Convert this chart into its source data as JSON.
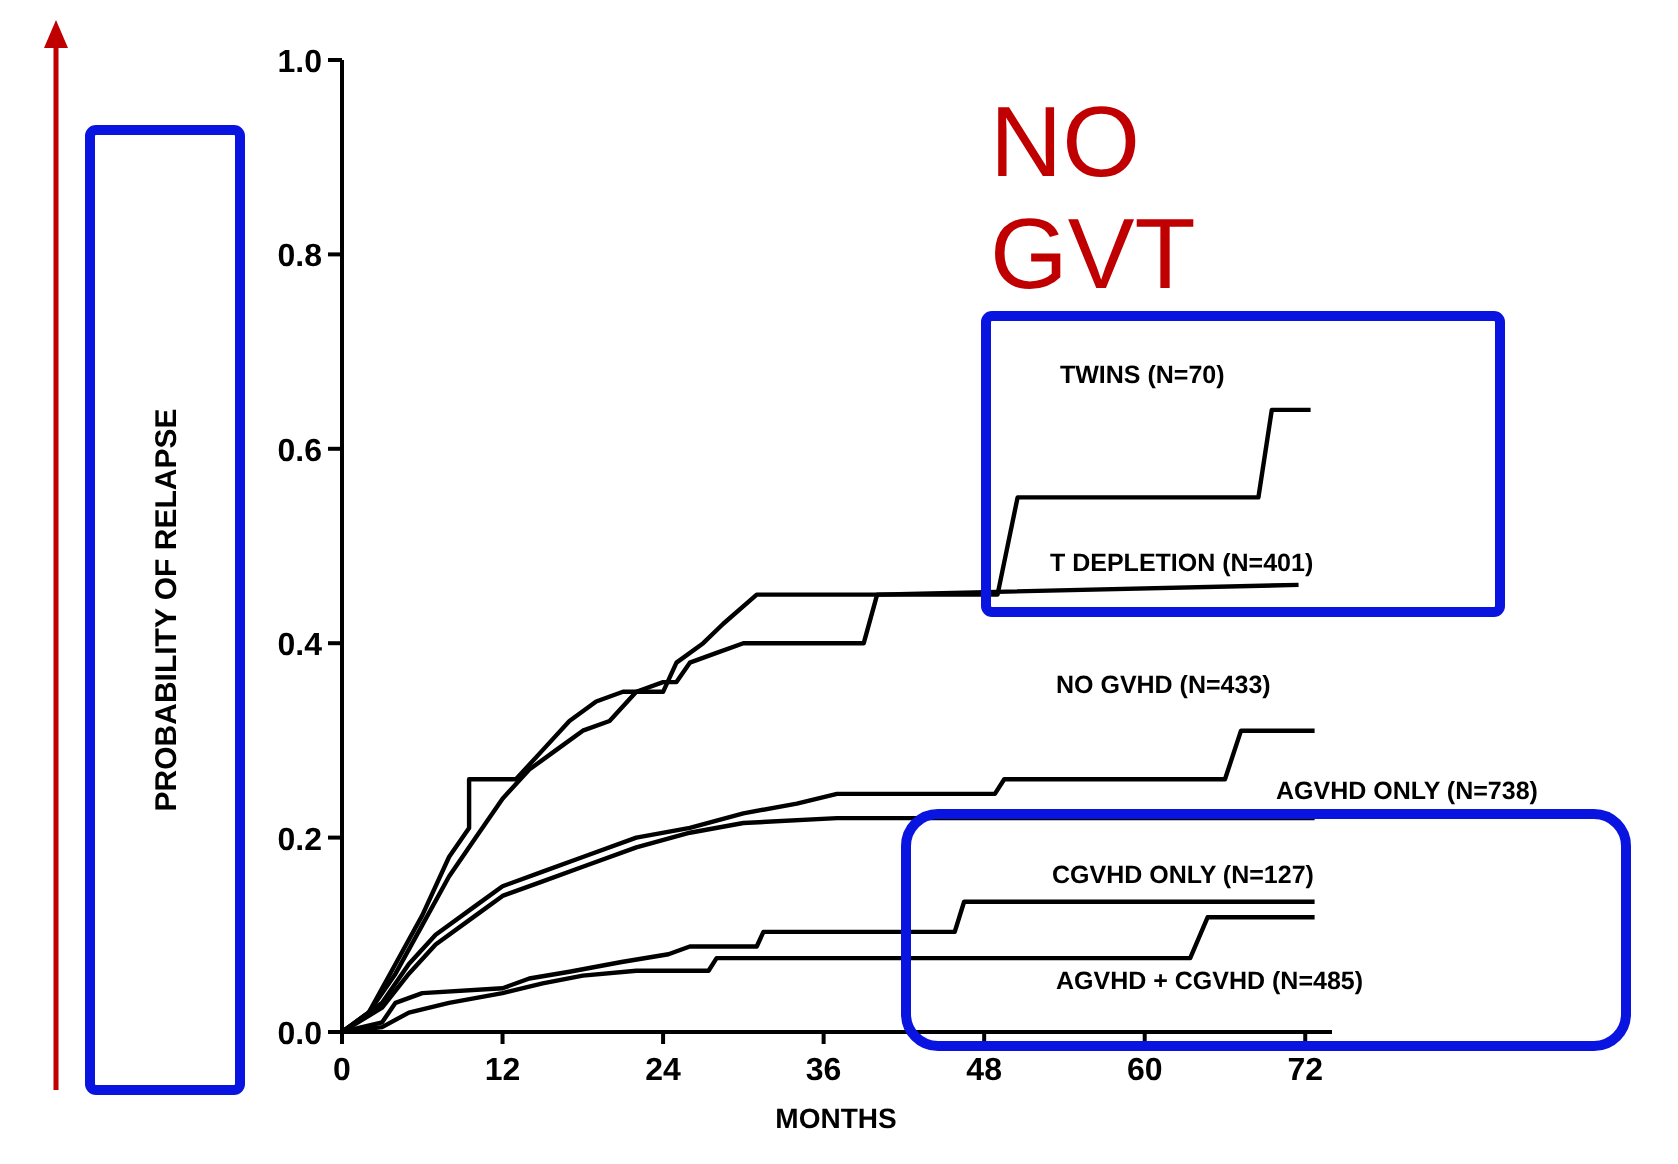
{
  "chart_data": {
    "type": "line",
    "xlabel": "MONTHS",
    "ylabel": "PROBABILITY OF RELAPSE",
    "xlim": [
      0,
      74
    ],
    "ylim": [
      0,
      1
    ],
    "xticks": [
      0,
      12,
      24,
      36,
      48,
      60,
      72
    ],
    "yticks": [
      {
        "value": 0,
        "label": "0.0"
      },
      {
        "value": 0.2,
        "label": "0.2"
      },
      {
        "value": 0.4,
        "label": "0.4"
      },
      {
        "value": 0.6,
        "label": "0.6"
      },
      {
        "value": 0.8,
        "label": "0.8"
      },
      {
        "value": 1,
        "label": "1.0"
      }
    ],
    "grid": false,
    "line_style": "solid",
    "series": [
      {
        "name": "TWINS (N=70)",
        "color": "#000000",
        "x": [
          0,
          2,
          4,
          6,
          8,
          9.5,
          9.5,
          13,
          15,
          17,
          19,
          21,
          24,
          25,
          27,
          28.5,
          31,
          40,
          49,
          50.5,
          68.5,
          69.5,
          72.4
        ],
        "values": [
          0,
          0.02,
          0.07,
          0.12,
          0.18,
          0.21,
          0.26,
          0.26,
          0.29,
          0.32,
          0.34,
          0.35,
          0.35,
          0.38,
          0.4,
          0.42,
          0.45,
          0.45,
          0.45,
          0.55,
          0.55,
          0.64,
          0.64
        ]
      },
      {
        "name": "T DEPLETION (N=401)",
        "color": "#000000",
        "x": [
          0,
          2,
          4,
          6,
          8,
          10,
          12,
          14,
          16,
          18,
          20,
          22,
          24,
          25,
          26,
          28,
          30,
          39,
          40,
          71.5
        ],
        "values": [
          0,
          0.02,
          0.06,
          0.11,
          0.16,
          0.2,
          0.24,
          0.27,
          0.29,
          0.31,
          0.32,
          0.35,
          0.36,
          0.36,
          0.38,
          0.39,
          0.4,
          0.4,
          0.45,
          0.46
        ]
      },
      {
        "name": "NO GVHD (N=433)",
        "color": "#000000",
        "x": [
          0,
          3,
          5,
          7,
          10,
          12,
          15,
          18,
          22,
          26,
          30,
          34,
          37,
          48.8,
          49.5,
          66,
          67.2,
          72.7
        ],
        "values": [
          0,
          0.03,
          0.07,
          0.1,
          0.13,
          0.15,
          0.165,
          0.18,
          0.2,
          0.21,
          0.225,
          0.235,
          0.245,
          0.245,
          0.26,
          0.26,
          0.31,
          0.31
        ]
      },
      {
        "name": "AGVHD ONLY (N=738)",
        "color": "#000000",
        "x": [
          0,
          3,
          5,
          7,
          10,
          12,
          15,
          18,
          22,
          26,
          30,
          37,
          72.7
        ],
        "values": [
          0,
          0.025,
          0.06,
          0.09,
          0.12,
          0.14,
          0.155,
          0.17,
          0.19,
          0.205,
          0.215,
          0.22,
          0.22
        ]
      },
      {
        "name": "CGVHD ONLY (N=127)",
        "color": "#000000",
        "x": [
          0,
          3,
          4,
          6,
          12,
          14,
          17,
          20.9,
          24.4,
          26,
          31,
          31.5,
          45.8,
          46.5,
          72.7
        ],
        "values": [
          0,
          0.01,
          0.03,
          0.04,
          0.045,
          0.055,
          0.062,
          0.072,
          0.08,
          0.088,
          0.088,
          0.103,
          0.103,
          0.134,
          0.134
        ]
      },
      {
        "name": "AGVHD + CGVHD (N=485)",
        "color": "#000000",
        "x": [
          0,
          3,
          5,
          8,
          12,
          15,
          18,
          22,
          27.4,
          28,
          63.4,
          64.7,
          72.7
        ],
        "values": [
          0,
          0.005,
          0.02,
          0.03,
          0.04,
          0.05,
          0.058,
          0.063,
          0.063,
          0.076,
          0.076,
          0.118,
          0.118
        ]
      }
    ],
    "annotations": [
      "NO GVT"
    ]
  }
}
